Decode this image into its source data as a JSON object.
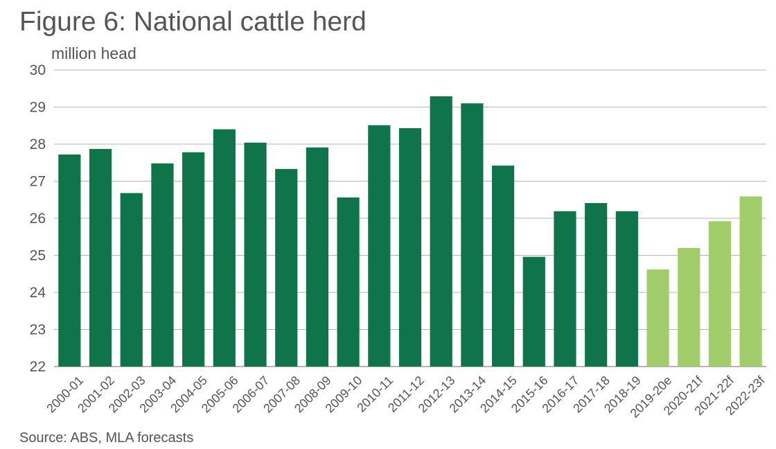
{
  "title": "Figure 6: National cattle herd",
  "source": "Source: ABS, MLA forecasts",
  "colors": {
    "actual": "#10744a",
    "forecast": "#a0cd6a",
    "grid": "#b3b3b3",
    "axis": "#999999"
  },
  "chart_data": {
    "type": "bar",
    "title": "Figure 6: National cattle herd",
    "xlabel": "",
    "ylabel": "million head",
    "ylim": [
      22,
      30
    ],
    "yticks": [
      22,
      23,
      24,
      25,
      26,
      27,
      28,
      29,
      30
    ],
    "grid": true,
    "categories": [
      "2000-01",
      "2001-02",
      "2002-03",
      "2003-04",
      "2004-05",
      "2005-06",
      "2006-07",
      "2007-08",
      "2008-09",
      "2009-10",
      "2010-11",
      "2011-12",
      "2012-13",
      "2013-14",
      "2014-15",
      "2015-16",
      "2016-17",
      "2017-18",
      "2018-19",
      "2019-20e",
      "2020-21f",
      "2021-22f",
      "2022-23f"
    ],
    "values": [
      27.72,
      27.87,
      26.68,
      27.48,
      27.78,
      28.4,
      28.04,
      27.33,
      27.91,
      26.56,
      28.51,
      28.43,
      29.29,
      29.1,
      27.42,
      24.96,
      26.19,
      26.41,
      26.19,
      24.62,
      25.2,
      25.92,
      26.59
    ],
    "forecast": [
      false,
      false,
      false,
      false,
      false,
      false,
      false,
      false,
      false,
      false,
      false,
      false,
      false,
      false,
      false,
      false,
      false,
      false,
      false,
      true,
      true,
      true,
      true
    ]
  }
}
